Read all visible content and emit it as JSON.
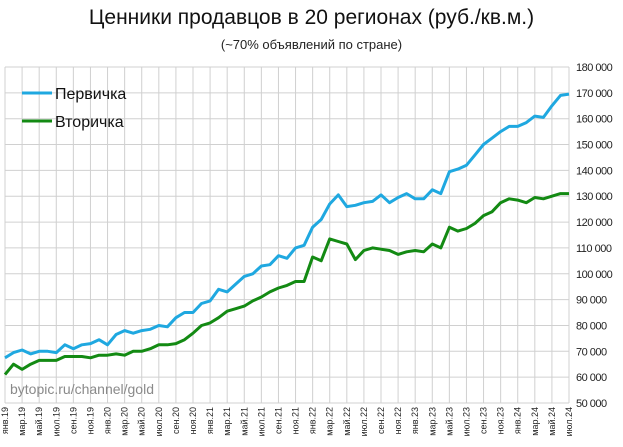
{
  "chart_data": {
    "type": "line",
    "title": "Ценники продавцов в 20 регионах (руб./кв.м.)",
    "subtitle": "(~70% объявлений по стране)",
    "watermark": "bytopic.ru/channel/gold",
    "ylim": [
      50000,
      180000
    ],
    "ytick_step": 10000,
    "yticks": [
      "50 000",
      "60 000",
      "70 000",
      "80 000",
      "90 000",
      "100 000",
      "110 000",
      "120 000",
      "130 000",
      "140 000",
      "150 000",
      "160 000",
      "170 000",
      "180 000"
    ],
    "y_axis_position": "right",
    "grid": true,
    "legend_position": "top-left",
    "x_start": "2019-01",
    "x_end": "2024-07",
    "x_frequency": "monthly",
    "xtick_labels": [
      "янв.19",
      "мар.19",
      "май.19",
      "июл.19",
      "сен.19",
      "ноя.19",
      "янв.20",
      "мар.20",
      "май.20",
      "июл.20",
      "сен.20",
      "ноя.20",
      "янв.21",
      "мар.21",
      "май.21",
      "июл.21",
      "сен.21",
      "ноя.21",
      "янв.22",
      "мар.22",
      "май.22",
      "июл.22",
      "сен.22",
      "ноя.22",
      "янв.23",
      "мар.23",
      "май.23",
      "июл.23",
      "сен.23",
      "ноя.23",
      "янв.24",
      "мар.24",
      "май.24",
      "июл.24"
    ],
    "series": [
      {
        "name": "Первичка",
        "color": "#1fa8e0",
        "values": [
          67500,
          69500,
          70500,
          69000,
          70000,
          70000,
          69500,
          72500,
          71000,
          72500,
          73000,
          74500,
          72500,
          76500,
          78000,
          77000,
          78000,
          78500,
          80000,
          79500,
          83000,
          85000,
          85000,
          88500,
          89500,
          94000,
          93000,
          96000,
          99000,
          100000,
          103000,
          103500,
          107000,
          106000,
          110000,
          111000,
          118000,
          121000,
          127000,
          130500,
          126000,
          126500,
          127500,
          128000,
          130500,
          127500,
          129500,
          131000,
          129000,
          129000,
          132500,
          131000,
          139500,
          140500,
          142000,
          146000,
          150000,
          152500,
          155000,
          157000,
          157000,
          158500,
          161000,
          160500,
          165000,
          169000,
          169500
        ]
      },
      {
        "name": "Вторичка",
        "color": "#138a13",
        "values": [
          61000,
          65000,
          63000,
          65000,
          66500,
          66500,
          66500,
          68000,
          68000,
          68000,
          67500,
          68500,
          68500,
          69000,
          68500,
          70000,
          70000,
          71000,
          72500,
          72500,
          73000,
          74500,
          77000,
          80000,
          81000,
          83000,
          85500,
          86500,
          87500,
          89500,
          91000,
          93000,
          94500,
          95500,
          97000,
          97000,
          106500,
          105000,
          113500,
          112500,
          111500,
          105500,
          109000,
          110000,
          109500,
          109000,
          107500,
          108500,
          109000,
          108500,
          111500,
          110000,
          118000,
          116500,
          117500,
          119500,
          122500,
          124000,
          127500,
          129000,
          128500,
          127500,
          129500,
          129000,
          130000,
          131000,
          131000
        ]
      }
    ]
  }
}
